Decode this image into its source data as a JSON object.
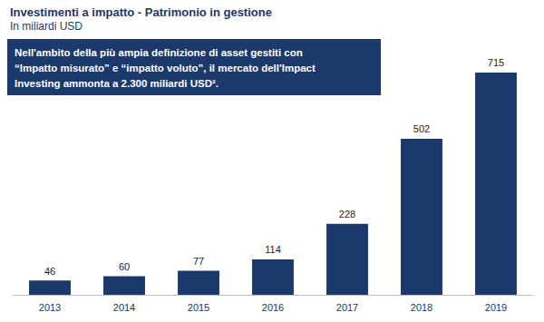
{
  "chart_data": {
    "type": "bar",
    "title": "Investimenti a impatto - Patrimonio in gestione",
    "subtitle": "In miliardi USD",
    "annotation": "Nell'ambito della più ampia definizione di asset gestiti con\n“Impatto misurato” e “impatto voluto”, il mercato dell'Impact\nInvesting ammonta a 2.300 miliardi USD².",
    "categories": [
      "2013",
      "2014",
      "2015",
      "2016",
      "2017",
      "2018",
      "2019"
    ],
    "values": [
      46,
      60,
      77,
      114,
      228,
      502,
      715
    ],
    "color": "#1b3a6b",
    "ylim": [
      0,
      750
    ],
    "yticks": [
      0,
      750
    ],
    "grid": false,
    "data_labels": true,
    "tick_labels": "x"
  }
}
